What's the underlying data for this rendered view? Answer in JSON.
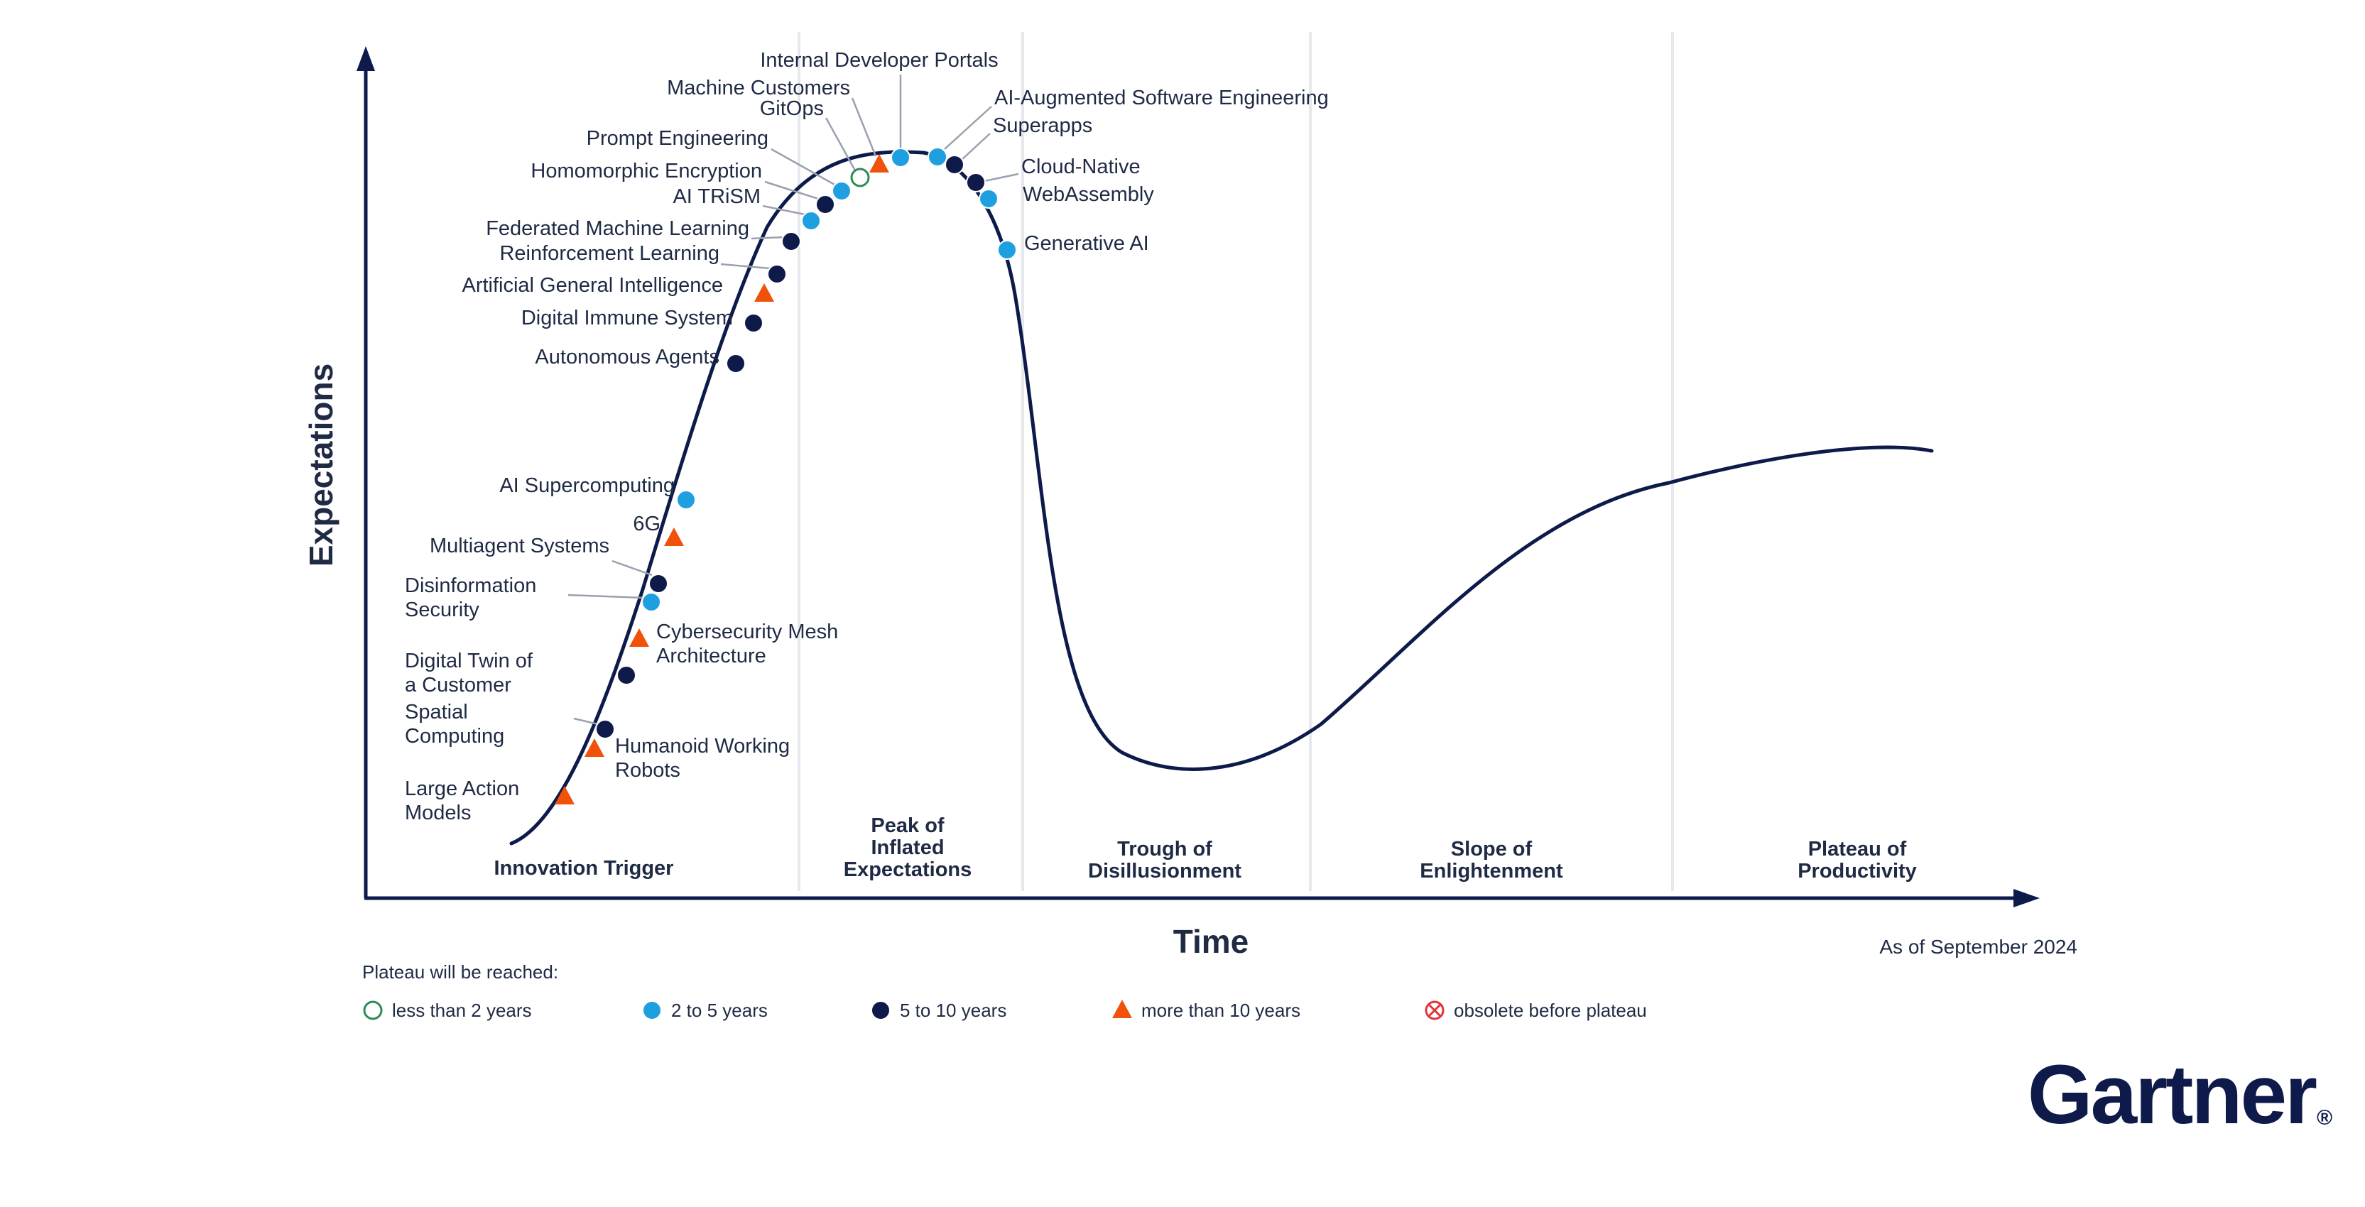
{
  "chart_data": {
    "type": "diagram",
    "axis": {
      "x_label": "Time",
      "y_label": "Expectations"
    },
    "as_of": "As of September 2024",
    "phases": [
      {
        "key": "innovation",
        "lines": [
          "Innovation Trigger"
        ]
      },
      {
        "key": "peak",
        "lines": [
          "Peak of",
          "Inflated",
          "Expectations"
        ]
      },
      {
        "key": "trough",
        "lines": [
          "Trough of",
          "Disillusionment"
        ]
      },
      {
        "key": "slope",
        "lines": [
          "Slope of",
          "Enlightenment"
        ]
      },
      {
        "key": "plateau",
        "lines": [
          "Plateau of",
          "Productivity"
        ]
      }
    ],
    "legend": {
      "title": "Plateau will be reached:",
      "items": [
        {
          "key": "lt2",
          "label": "less than 2 years",
          "marker": "open-circle",
          "color": "#2e8b57"
        },
        {
          "key": "2to5",
          "label": "2 to 5 years",
          "marker": "circle",
          "color": "#1ea0e0"
        },
        {
          "key": "5to10",
          "label": "5 to 10 years",
          "marker": "circle",
          "color": "#0d1a4a"
        },
        {
          "key": "gt10",
          "label": "more than 10 years",
          "marker": "triangle",
          "color": "#f0520a"
        },
        {
          "key": "obsolete",
          "label": "obsolete before plateau",
          "marker": "crossed-circle",
          "color": "#e0353b"
        }
      ]
    },
    "technologies": [
      {
        "name": "Large Action Models",
        "lines": [
          "Large Action",
          "Models"
        ],
        "category": "gt10"
      },
      {
        "name": "Humanoid Working Robots",
        "lines": [
          "Humanoid Working",
          "Robots"
        ],
        "category": "gt10"
      },
      {
        "name": "Spatial Computing",
        "lines": [
          "Spatial",
          "Computing"
        ],
        "category": "5to10"
      },
      {
        "name": "Digital Twin of a Customer",
        "lines": [
          "Digital Twin of",
          "a Customer"
        ],
        "category": "5to10"
      },
      {
        "name": "Cybersecurity Mesh Architecture",
        "lines": [
          "Cybersecurity Mesh",
          "Architecture"
        ],
        "category": "gt10"
      },
      {
        "name": "Disinformation Security",
        "lines": [
          "Disinformation",
          "Security"
        ],
        "category": "2to5"
      },
      {
        "name": "Multiagent Systems",
        "lines": [
          "Multiagent Systems"
        ],
        "category": "5to10"
      },
      {
        "name": "6G",
        "lines": [
          "6G"
        ],
        "category": "gt10"
      },
      {
        "name": "AI Supercomputing",
        "lines": [
          "AI Supercomputing"
        ],
        "category": "2to5"
      },
      {
        "name": "Autonomous Agents",
        "lines": [
          "Autonomous Agents"
        ],
        "category": "5to10"
      },
      {
        "name": "Digital Immune System",
        "lines": [
          "Digital Immune System"
        ],
        "category": "5to10"
      },
      {
        "name": "Artificial General Intelligence",
        "lines": [
          "Artificial General Intelligence"
        ],
        "category": "gt10"
      },
      {
        "name": "Reinforcement Learning",
        "lines": [
          "Reinforcement Learning"
        ],
        "category": "5to10"
      },
      {
        "name": "Federated Machine Learning",
        "lines": [
          "Federated Machine Learning"
        ],
        "category": "5to10"
      },
      {
        "name": "AI TRiSM",
        "lines": [
          "AI TRiSM"
        ],
        "category": "2to5"
      },
      {
        "name": "Homomorphic Encryption",
        "lines": [
          "Homomorphic Encryption"
        ],
        "category": "5to10"
      },
      {
        "name": "Prompt Engineering",
        "lines": [
          "Prompt Engineering"
        ],
        "category": "2to5"
      },
      {
        "name": "GitOps",
        "lines": [
          "GitOps"
        ],
        "category": "lt2"
      },
      {
        "name": "Machine Customers",
        "lines": [
          "Machine Customers"
        ],
        "category": "gt10"
      },
      {
        "name": "Internal Developer Portals",
        "lines": [
          "Internal Developer Portals"
        ],
        "category": "2to5"
      },
      {
        "name": "AI-Augmented Software Engineering",
        "lines": [
          "AI-Augmented Software Engineering"
        ],
        "category": "2to5"
      },
      {
        "name": "Superapps",
        "lines": [
          "Superapps"
        ],
        "category": "5to10"
      },
      {
        "name": "Cloud-Native",
        "lines": [
          "Cloud-Native"
        ],
        "category": "5to10"
      },
      {
        "name": "WebAssembly",
        "lines": [
          "WebAssembly"
        ],
        "category": "2to5"
      },
      {
        "name": "Generative AI",
        "lines": [
          "Generative AI"
        ],
        "category": "2to5"
      }
    ]
  },
  "brand": {
    "logo_text": "Gartner",
    "registered_mark": "®"
  }
}
